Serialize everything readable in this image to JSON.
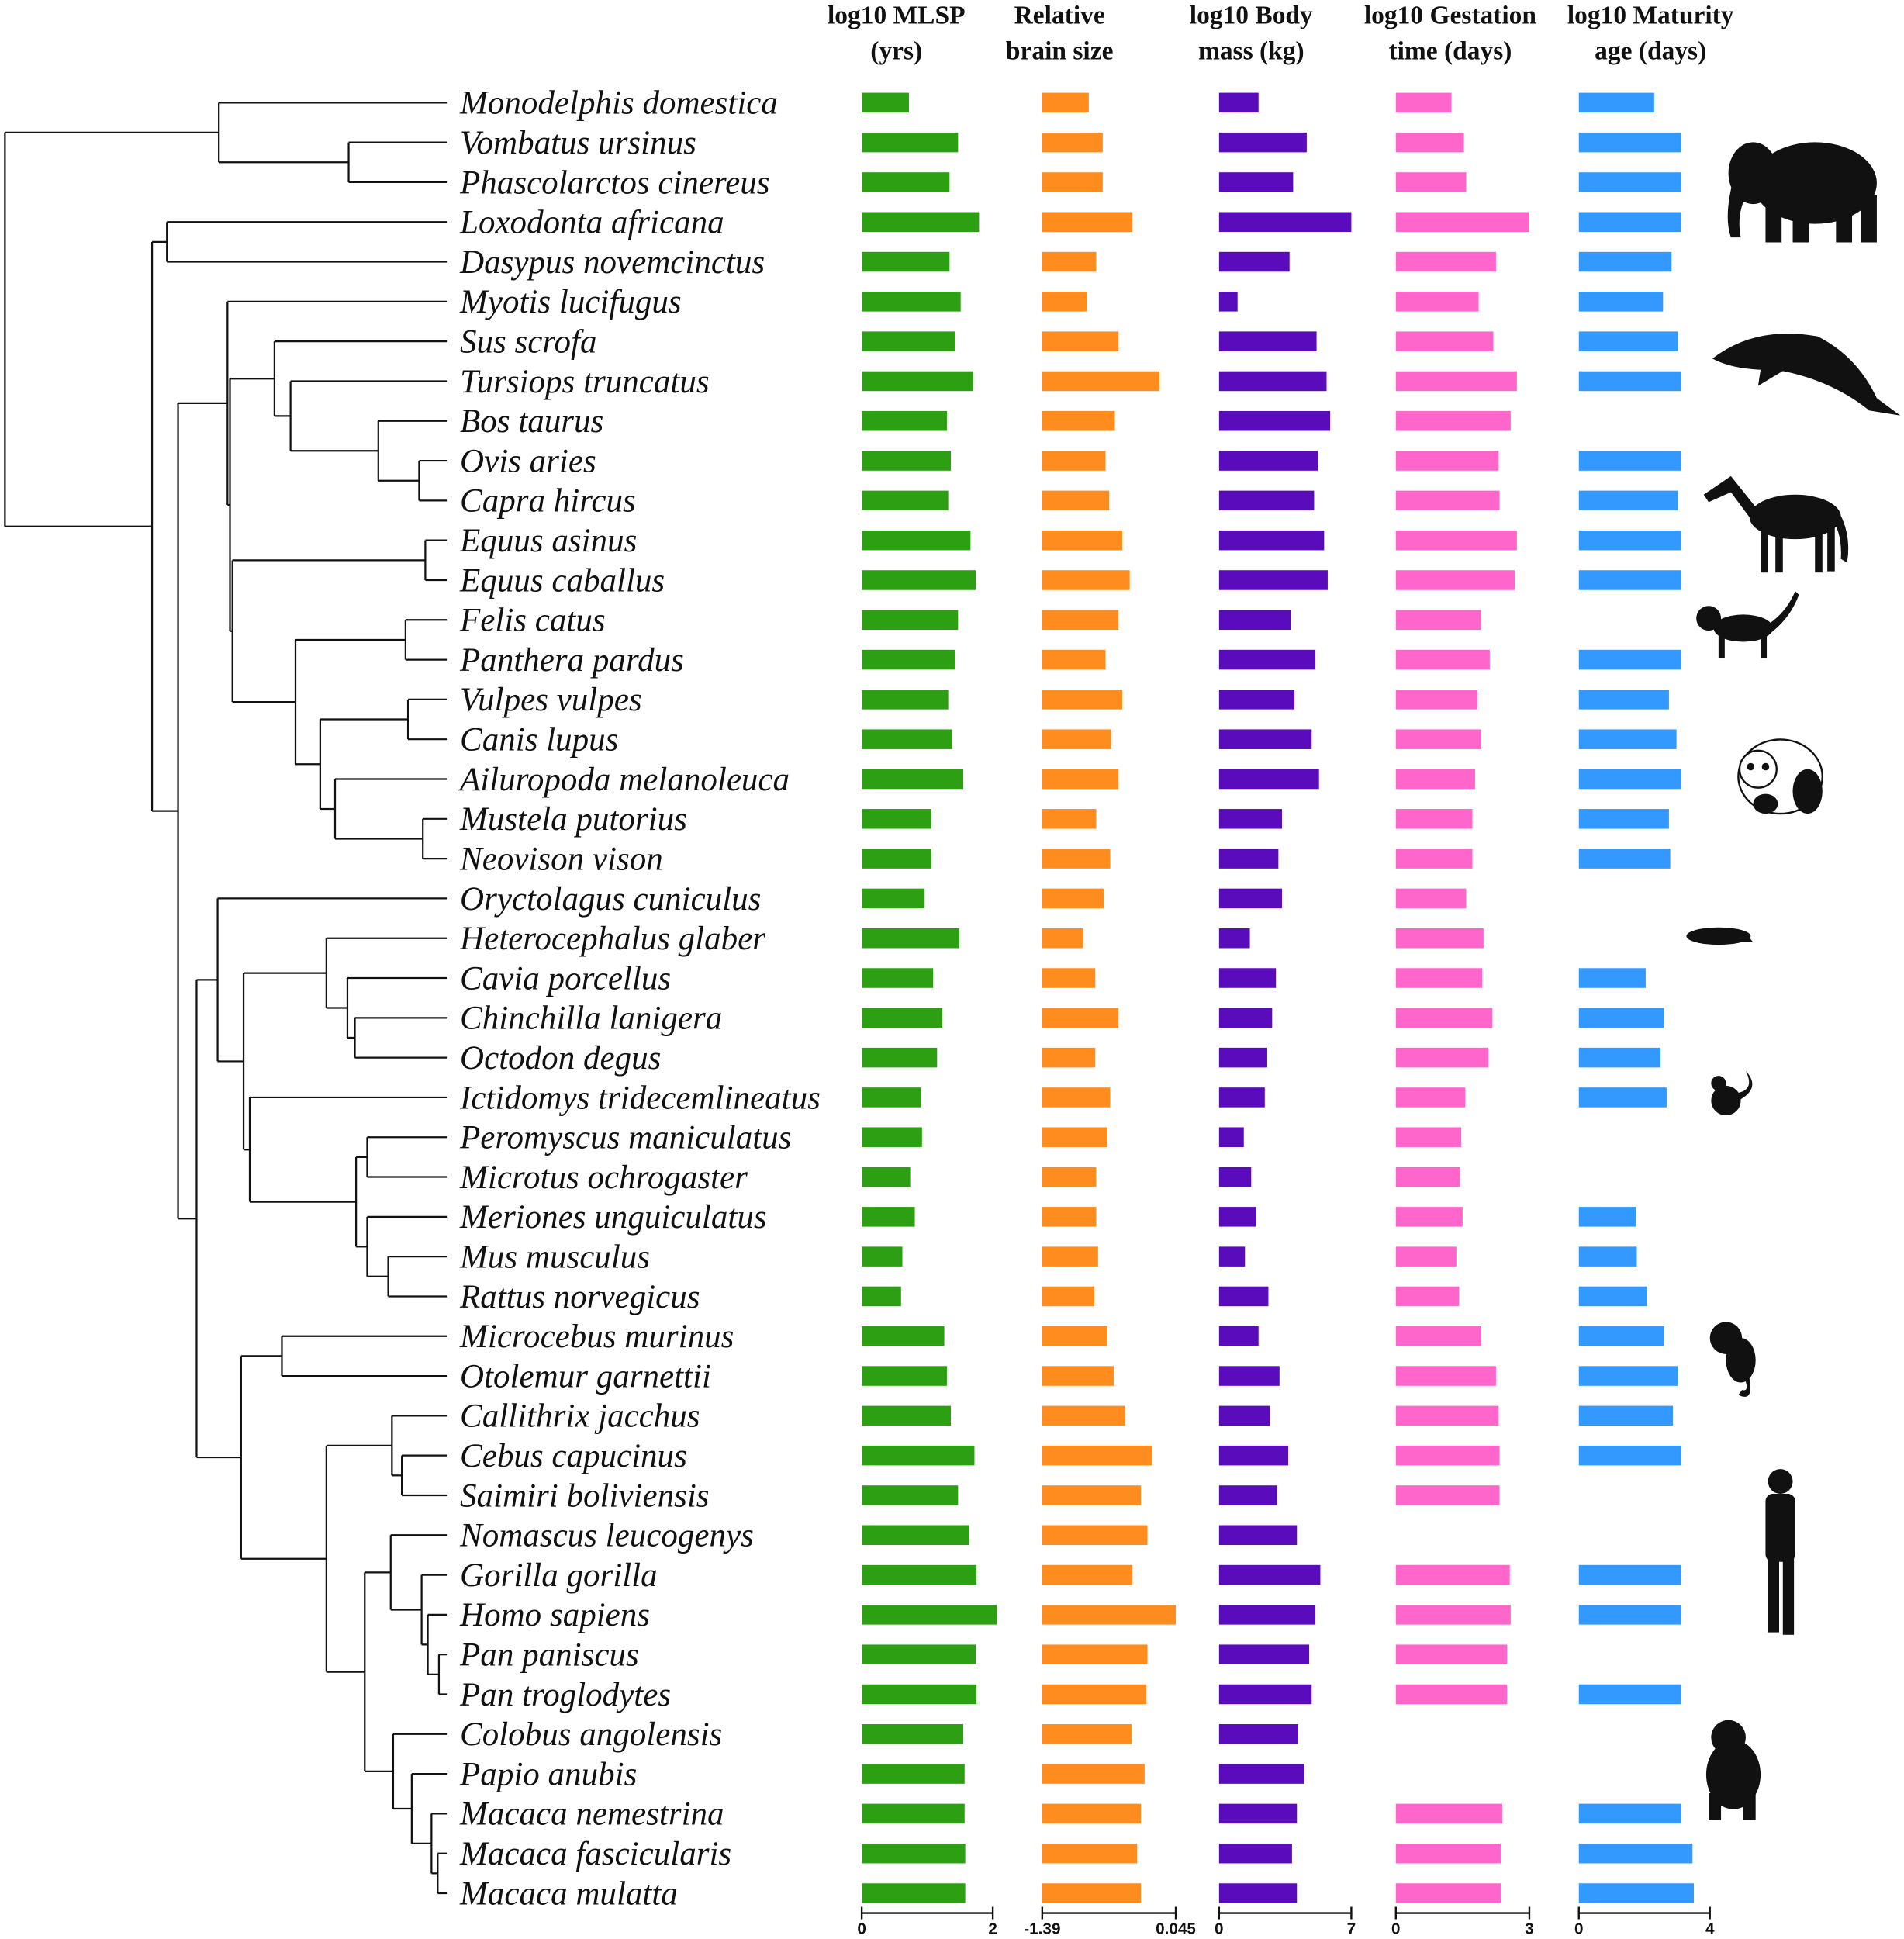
{
  "chart_data": {
    "type": "bar",
    "categories": [
      "Monodelphis domestica",
      "Vombatus ursinus",
      "Phascolarctos cinereus",
      "Loxodonta africana",
      "Dasypus novemcinctus",
      "Myotis lucifugus",
      "Sus scrofa",
      "Tursiops truncatus",
      "Bos taurus",
      "Ovis aries",
      "Capra hircus",
      "Equus asinus",
      "Equus caballus",
      "Felis catus",
      "Panthera pardus",
      "Vulpes vulpes",
      "Canis lupus",
      "Ailuropoda melanoleuca",
      "Mustela putorius",
      "Neovison vison",
      "Oryctolagus cuniculus",
      "Heterocephalus glaber",
      "Cavia porcellus",
      "Chinchilla lanigera",
      "Octodon degus",
      "Ictidomys tridecemlineatus",
      "Peromyscus maniculatus",
      "Microtus ochrogaster",
      "Meriones unguiculatus",
      "Mus musculus",
      "Rattus norvegicus",
      "Microcebus murinus",
      "Otolemur garnettii",
      "Callithrix jacchus",
      "Cebus capucinus",
      "Saimiri boliviensis",
      "Nomascus leucogenys",
      "Gorilla gorilla",
      "Homo sapiens",
      "Pan paniscus",
      "Pan troglodytes",
      "Colobus angolensis",
      "Papio anubis",
      "Macaca nemestrina",
      "Macaca fascicularis",
      "Macaca mulatta"
    ],
    "series": [
      {
        "name_lines": [
          "log10 MLSP",
          "(yrs)"
        ],
        "color": "#2ca012",
        "xlim": [
          0,
          2
        ],
        "tick_labels": [
          "0",
          "2"
        ],
        "values": [
          0.72,
          1.47,
          1.34,
          1.79,
          1.34,
          1.51,
          1.43,
          1.7,
          1.3,
          1.36,
          1.32,
          1.66,
          1.74,
          1.47,
          1.43,
          1.32,
          1.38,
          1.55,
          1.06,
          1.06,
          0.96,
          1.49,
          1.09,
          1.23,
          1.15,
          0.91,
          0.92,
          0.74,
          0.81,
          0.62,
          0.6,
          1.26,
          1.3,
          1.36,
          1.72,
          1.47,
          1.64,
          1.75,
          2.06,
          1.74,
          1.75,
          1.55,
          1.57,
          1.57,
          1.58,
          1.58
        ]
      },
      {
        "name_lines": [
          "Relative",
          "brain size"
        ],
        "color": "#ff8c1f",
        "xlim": [
          -1.39,
          0.045
        ],
        "tick_labels": [
          "-1.39",
          "0.045"
        ],
        "values": [
          -0.89,
          -0.74,
          -0.74,
          -0.42,
          -0.81,
          -0.91,
          -0.57,
          -0.13,
          -0.61,
          -0.71,
          -0.67,
          -0.53,
          -0.45,
          -0.57,
          -0.71,
          -0.53,
          -0.65,
          -0.57,
          -0.81,
          -0.66,
          -0.73,
          -0.95,
          -0.82,
          -0.57,
          -0.82,
          -0.66,
          -0.69,
          -0.81,
          -0.81,
          -0.79,
          -0.83,
          -0.69,
          -0.62,
          -0.5,
          -0.21,
          -0.33,
          -0.26,
          -0.42,
          0.045,
          -0.26,
          -0.27,
          -0.43,
          -0.29,
          -0.33,
          -0.37,
          -0.33
        ]
      },
      {
        "name_lines": [
          "log10 Body",
          "mass (kg)"
        ],
        "color": "#5a0cbc",
        "xlim": [
          0,
          7
        ],
        "tick_labels": [
          "0",
          "7"
        ],
        "values": [
          2.09,
          4.64,
          3.92,
          7.0,
          3.73,
          0.98,
          5.16,
          5.69,
          5.88,
          5.23,
          5.03,
          5.56,
          5.75,
          3.79,
          5.1,
          3.99,
          4.9,
          5.29,
          3.33,
          3.14,
          3.33,
          1.63,
          3.01,
          2.81,
          2.55,
          2.42,
          1.31,
          1.7,
          1.96,
          1.37,
          2.61,
          2.09,
          3.2,
          2.68,
          3.66,
          3.07,
          4.12,
          5.36,
          5.1,
          4.77,
          4.9,
          4.18,
          4.51,
          4.12,
          3.86,
          4.12
        ]
      },
      {
        "name_lines": [
          "log10 Gestation",
          "time (days)"
        ],
        "color": "#ff66cc",
        "xlim": [
          0,
          3
        ],
        "tick_labels": [
          "0",
          "3"
        ],
        "values": [
          1.25,
          1.53,
          1.58,
          3.0,
          2.25,
          1.86,
          2.19,
          2.72,
          2.58,
          2.31,
          2.33,
          2.72,
          2.67,
          1.92,
          2.11,
          1.83,
          1.92,
          1.78,
          1.72,
          1.72,
          1.58,
          1.97,
          1.94,
          2.17,
          2.08,
          1.56,
          1.47,
          1.44,
          1.5,
          1.36,
          1.42,
          1.92,
          2.25,
          2.31,
          2.33,
          2.33,
          null,
          2.56,
          2.58,
          2.5,
          2.5,
          null,
          null,
          2.39,
          2.36,
          2.36
        ]
      },
      {
        "name_lines": [
          "log10 Maturity",
          "age (days)"
        ],
        "color": "#3399ff",
        "xlim": [
          0,
          4
        ],
        "tick_labels": [
          "0",
          "4"
        ],
        "values": [
          2.3,
          3.13,
          3.13,
          3.13,
          2.83,
          2.57,
          3.02,
          3.13,
          null,
          3.13,
          3.02,
          3.13,
          3.13,
          null,
          3.13,
          2.75,
          2.98,
          3.13,
          2.75,
          2.79,
          null,
          null,
          2.04,
          2.6,
          2.49,
          2.68,
          null,
          null,
          1.74,
          1.77,
          2.08,
          2.6,
          3.02,
          2.87,
          3.13,
          null,
          null,
          3.13,
          3.13,
          null,
          3.13,
          null,
          null,
          3.13,
          3.47,
          3.51
        ]
      }
    ],
    "tree": [
      [
        "Monodelphis domestica",
        [
          "Vombatus ursinus",
          "Phascolarctos cinereus"
        ]
      ],
      [
        [
          "Loxodonta africana",
          "Dasypus novemcinctus"
        ],
        [
          [
            "Myotis lucifugus",
            [
              [
                "Sus scrofa",
                [
                  "Tursiops truncatus",
                  [
                    "Bos taurus",
                    [
                      "Ovis aries",
                      "Capra hircus"
                    ]
                  ]
                ]
              ],
              [
                [
                  "Equus asinus",
                  "Equus caballus"
                ],
                [
                  [
                    "Felis catus",
                    "Panthera pardus"
                  ],
                  [
                    [
                      "Vulpes vulpes",
                      "Canis lupus"
                    ],
                    [
                      "Ailuropoda melanoleuca",
                      [
                        "Mustela putorius",
                        "Neovison vison"
                      ]
                    ]
                  ]
                ]
              ]
            ]
          ],
          [
            [
              "Oryctolagus cuniculus",
              [
                [
                  "Heterocephalus glaber",
                  [
                    "Cavia porcellus",
                    [
                      "Chinchilla lanigera",
                      "Octodon degus"
                    ]
                  ]
                ],
                [
                  "Ictidomys tridecemlineatus",
                  [
                    [
                      "Peromyscus maniculatus",
                      "Microtus ochrogaster"
                    ],
                    [
                      "Meriones unguiculatus",
                      [
                        "Mus musculus",
                        "Rattus norvegicus"
                      ]
                    ]
                  ]
                ]
              ]
            ],
            [
              [
                "Microcebus murinus",
                "Otolemur garnettii"
              ],
              [
                [
                  "Callithrix jacchus",
                  [
                    "Cebus capucinus",
                    "Saimiri boliviensis"
                  ]
                ],
                [
                  [
                    "Nomascus leucogenys",
                    [
                      "Gorilla gorilla",
                      [
                        "Homo sapiens",
                        [
                          "Pan paniscus",
                          "Pan troglodytes"
                        ]
                      ]
                    ]
                  ],
                  [
                    "Colobus angolensis",
                    [
                      "Papio anubis",
                      [
                        "Macaca nemestrina",
                        [
                          "Macaca fascicularis",
                          "Macaca mulatta"
                        ]
                      ]
                    ]
                  ]
                ]
              ]
            ]
          ]
        ]
      ]
    ],
    "grid": false,
    "silhouettes": [
      "elephant-icon",
      "dolphin-icon",
      "horse-icon",
      "cat-icon",
      "panda-icon",
      "mole-rat-icon",
      "squirrel-icon",
      "bushbaby-icon",
      "human-icon",
      "gorilla-icon"
    ]
  }
}
